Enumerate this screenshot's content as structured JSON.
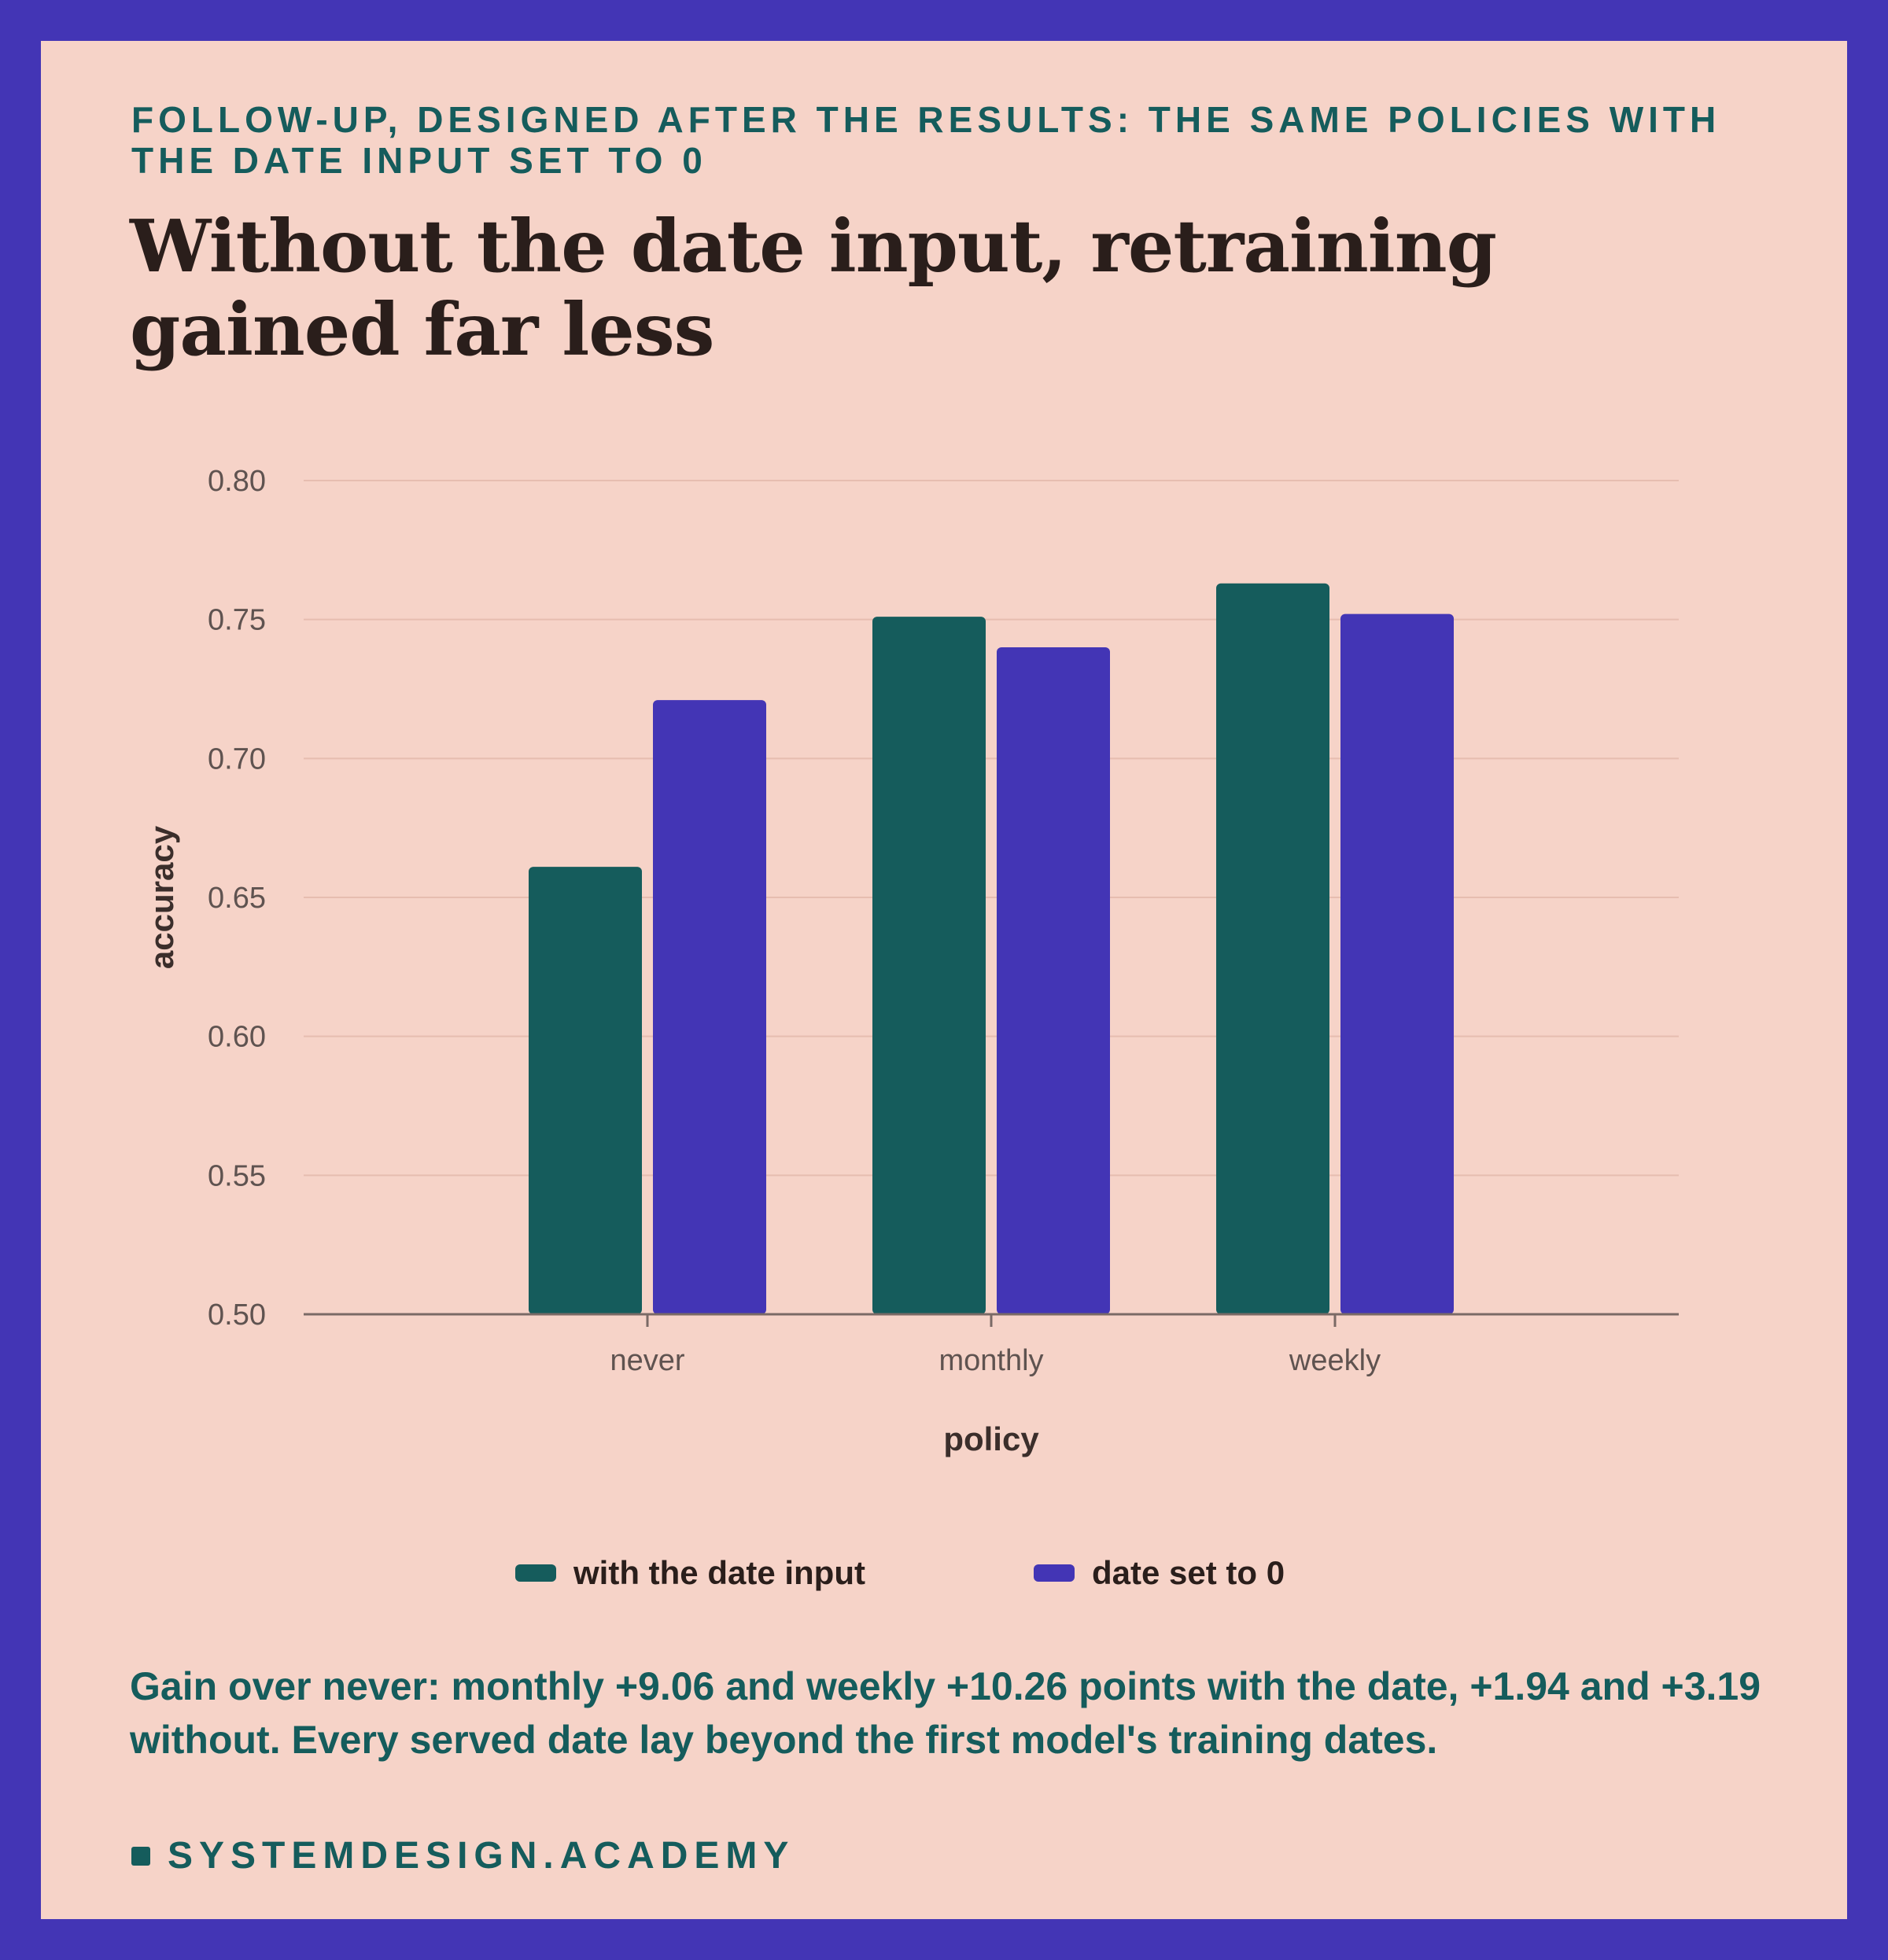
{
  "kicker": "Follow-up, designed after the results: the same policies with the date input set to 0",
  "headline": "Without the date input, retraining gained far less",
  "colors": {
    "frame": "#4335b5",
    "background": "#f6d3c8",
    "with_date": "#155c5c",
    "date_zero": "#4335b5",
    "text_dark": "#2a1e1b",
    "accent_text": "#155c5c"
  },
  "chart_data": {
    "type": "bar",
    "categories": [
      "never",
      "monthly",
      "weekly"
    ],
    "series": [
      {
        "name": "with the date input",
        "values": [
          0.661,
          0.751,
          0.763
        ],
        "color": "#155c5c"
      },
      {
        "name": "date set to 0",
        "values": [
          0.721,
          0.74,
          0.752
        ],
        "color": "#4335b5"
      }
    ],
    "xlabel": "policy",
    "ylabel": "accuracy",
    "ylim": [
      0.5,
      0.8
    ],
    "yticks": [
      "0.50",
      "0.55",
      "0.60",
      "0.65",
      "0.70",
      "0.75",
      "0.80"
    ],
    "grid": true,
    "legend_position": "bottom"
  },
  "note": "Gain over never: monthly +9.06 and weekly +10.26 points with the date, +1.94 and +3.19 without. Every served date lay beyond the first model's training dates.",
  "brand": "systemdesign.academy"
}
